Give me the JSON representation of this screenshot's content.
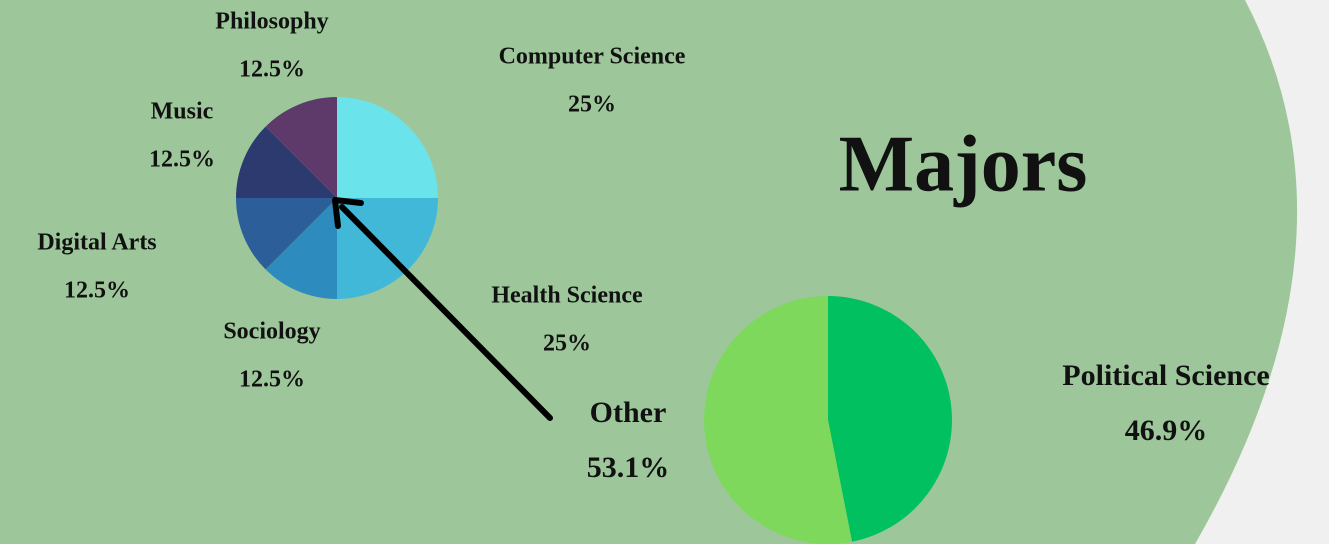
{
  "chart_data": [
    {
      "type": "pie",
      "categories": [
        "Computer Science",
        "Health Science",
        "Sociology",
        "Digital Arts",
        "Music",
        "Philosophy"
      ],
      "values": [
        25,
        25,
        12.5,
        12.5,
        12.5,
        12.5
      ],
      "value_labels": [
        "25%",
        "25%",
        "12.5%",
        "12.5%",
        "12.5%",
        "12.5%"
      ],
      "colors": [
        "#6ae3ea",
        "#42b8d9",
        "#2d8bbd",
        "#2c5e9a",
        "#2c3a70",
        "#5e3a6a"
      ]
    },
    {
      "type": "pie",
      "title": "Majors",
      "categories": [
        "Political Science",
        "Other"
      ],
      "values": [
        46.9,
        53.1
      ],
      "value_labels": [
        "46.9%",
        "53.1%"
      ],
      "colors": [
        "#00c060",
        "#7ed85c"
      ]
    }
  ]
}
